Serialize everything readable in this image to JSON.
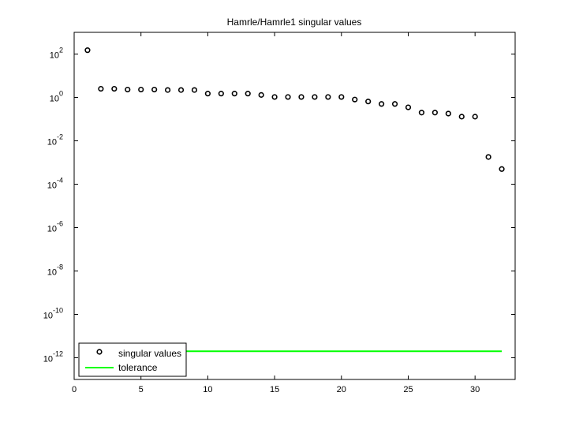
{
  "chart_data": {
    "type": "scatter",
    "title": "Hamrle/Hamrle1 singular values",
    "xlabel": "",
    "ylabel": "",
    "xlim": [
      0,
      33
    ],
    "ylim_log10": [
      -13,
      3
    ],
    "y_scale": "log",
    "x_ticks": [
      0,
      5,
      10,
      15,
      20,
      25,
      30
    ],
    "y_tick_exponents": [
      -12,
      -10,
      -8,
      -6,
      -4,
      -2,
      0,
      2
    ],
    "y_tick_base": "10",
    "grid": false,
    "legend_position": "bottom-left",
    "series": [
      {
        "name": "singular values",
        "style": "markers-open-circle",
        "color": "#000000",
        "x": [
          1,
          2,
          3,
          4,
          5,
          6,
          7,
          8,
          9,
          10,
          11,
          12,
          13,
          14,
          15,
          16,
          17,
          18,
          19,
          20,
          21,
          22,
          23,
          24,
          25,
          26,
          27,
          28,
          29,
          30,
          31,
          32
        ],
        "y": [
          150,
          2.5,
          2.5,
          2.3,
          2.3,
          2.3,
          2.2,
          2.2,
          2.2,
          1.5,
          1.5,
          1.5,
          1.5,
          1.3,
          1.05,
          1.05,
          1.05,
          1.05,
          1.05,
          1.05,
          0.8,
          0.65,
          0.5,
          0.5,
          0.35,
          0.2,
          0.2,
          0.18,
          0.13,
          0.13,
          0.0018,
          0.0005
        ]
      },
      {
        "name": "tolerance",
        "style": "line",
        "color": "#00ff00",
        "x": [
          1,
          32
        ],
        "y": [
          2e-12,
          2e-12
        ]
      }
    ]
  }
}
